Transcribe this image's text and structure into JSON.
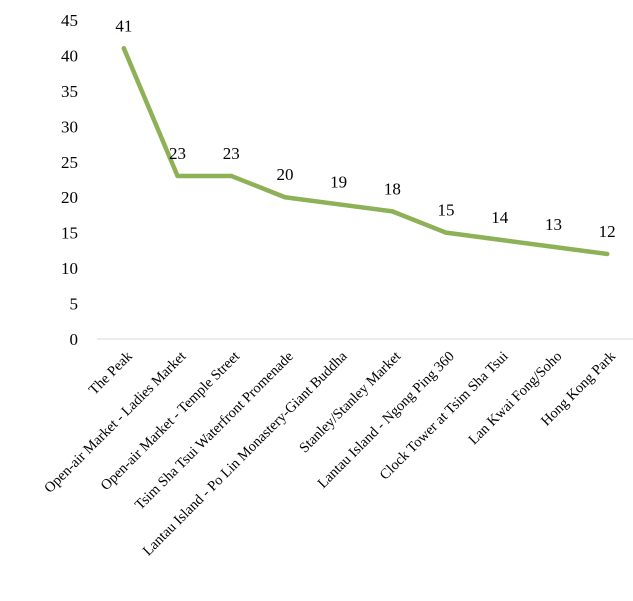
{
  "chart_data": {
    "type": "line",
    "title": "",
    "xlabel": "",
    "ylabel": "",
    "categories": [
      "The Peak",
      "Open-air Market - Ladies Market",
      "Open-air Market - Temple Street",
      "Tsim Sha Tsui Waterfront Promenade",
      "Lantau Island - Po Lin Monastery-Giant Buddha",
      "Stanley/Stanley Market",
      "Lantau Island - Ngong Ping 360",
      "Clock Tower at Tsim Sha Tsui",
      "Lan Kwai Fong/Soho",
      "Hong Kong Park"
    ],
    "series": [
      {
        "values": [
          41,
          23,
          23,
          20,
          19,
          18,
          15,
          14,
          13,
          12
        ],
        "color": "#8db156"
      }
    ],
    "data_labels": [
      "41",
      "23",
      "23",
      "20",
      "19",
      "18",
      "15",
      "14",
      "13",
      "12"
    ],
    "ylim": [
      0,
      45
    ],
    "yticks": [
      "0",
      "5",
      "10",
      "15",
      "20",
      "25",
      "30",
      "35",
      "40",
      "45"
    ],
    "grid": false,
    "legend": "none"
  }
}
